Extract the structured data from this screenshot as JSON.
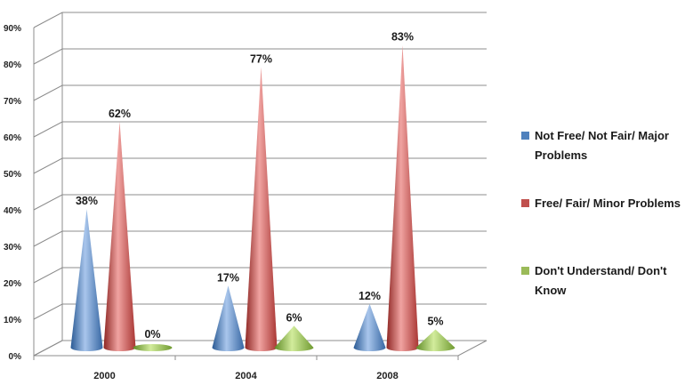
{
  "chart_data": {
    "type": "bar",
    "categories": [
      "2000",
      "2004",
      "2008"
    ],
    "series": [
      {
        "name": "Not Free/ Not Fair/ Major Problems",
        "values": [
          38,
          17,
          12
        ],
        "labels": [
          "38%",
          "17%",
          "12%"
        ],
        "color": "#4f81bd"
      },
      {
        "name": "Free/ Fair/ Minor Problems",
        "values": [
          62,
          77,
          83
        ],
        "labels": [
          "62%",
          "77%",
          "83%"
        ],
        "color": "#c0504d"
      },
      {
        "name": "Don't Understand/ Don't Know",
        "values": [
          0,
          6,
          5
        ],
        "labels": [
          "0%",
          "6%",
          "5%"
        ],
        "color": "#9bbb59"
      }
    ],
    "y_ticks": [
      "0%",
      "10%",
      "20%",
      "30%",
      "40%",
      "50%",
      "60%",
      "70%",
      "80%",
      "90%"
    ],
    "ylim": [
      0,
      90
    ],
    "grid": true,
    "legend_position": "right",
    "title": "",
    "xlabel": "",
    "ylabel": ""
  }
}
